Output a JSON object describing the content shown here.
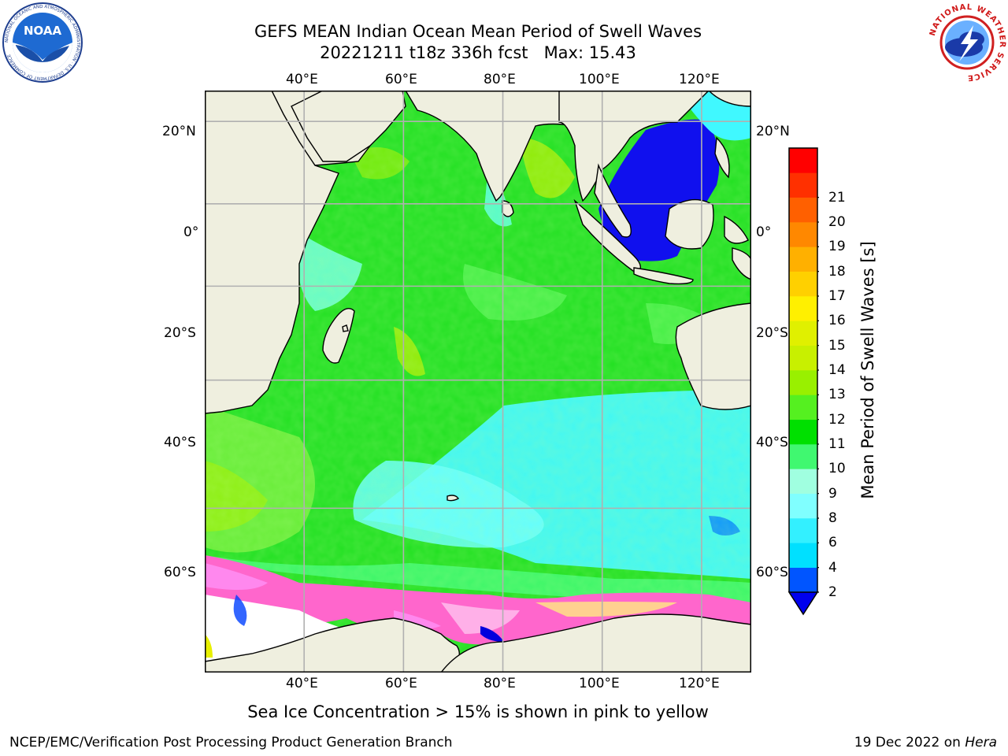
{
  "title": {
    "line1": "GEFS MEAN Indian Ocean Mean Period of Swell Waves",
    "line2": "20221211 t18z 336h fcst   Max: 15.43"
  },
  "map": {
    "top_lon_labels": [
      "40°E",
      "60°E",
      "80°E",
      "100°E",
      "120°E"
    ],
    "bottom_lon_labels": [
      "40°E",
      "60°E",
      "80°E",
      "100°E",
      "120°E"
    ],
    "left_lat_labels": [
      "20°N",
      "0°",
      "20°S",
      "40°S",
      "60°S"
    ],
    "right_lat_labels": [
      "20°N",
      "0°",
      "20°S",
      "40°S",
      "60°S"
    ],
    "lon_range": [
      20,
      130
    ],
    "lat_range": [
      -75,
      27
    ],
    "grid": true,
    "land_color": "#efefdf",
    "ocean_color": "#22e022"
  },
  "colorbar": {
    "label": "Mean Period of Swell Waves [s]",
    "ticks": [
      "2",
      "4",
      "6",
      "8",
      "9",
      "10",
      "11",
      "12",
      "13",
      "14",
      "15",
      "16",
      "17",
      "18",
      "19",
      "20",
      "21"
    ],
    "colors": [
      "#0055ff",
      "#00e0ff",
      "#33f0ff",
      "#80ffff",
      "#a0ffe0",
      "#40f870",
      "#00e000",
      "#55f020",
      "#99f000",
      "#c8f000",
      "#e0f000",
      "#fff000",
      "#ffd000",
      "#ffb000",
      "#ff8800",
      "#ff6000",
      "#ff3000",
      "#ff0000"
    ],
    "extend_color": "#0000ee"
  },
  "caption": "Sea Ice Concentration > 15% is shown in pink to yellow",
  "footer": {
    "left": "NCEP/EMC/Verification Post Processing Product Generation Branch",
    "right_date": "19 Dec 2022 on ",
    "right_host": "Hera"
  },
  "logos": {
    "left": {
      "text": "NOAA",
      "ring_text": "NATIONAL OCEANIC AND ATMOSPHERIC ADMINISTRATION · U.S. DEPARTMENT OF COMMERCE"
    },
    "right": {
      "ring_text": "NATIONAL WEATHER SERVICE"
    }
  }
}
